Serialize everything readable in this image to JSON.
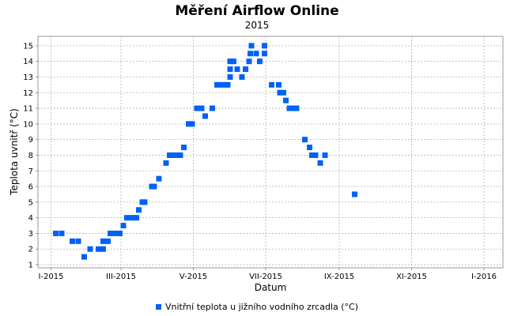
{
  "chart_data": {
    "type": "scatter",
    "title": "Měření Airflow Online",
    "subtitle": "2015",
    "xlabel": "Datum",
    "ylabel": "Teplota uvnitř (°C)",
    "x_ticks": [
      {
        "label": "I-2015",
        "date": "2015-01-01"
      },
      {
        "label": "III-2015",
        "date": "2015-03-01"
      },
      {
        "label": "V-2015",
        "date": "2015-05-01"
      },
      {
        "label": "VII-2015",
        "date": "2015-07-01"
      },
      {
        "label": "IX-2015",
        "date": "2015-09-01"
      },
      {
        "label": "XI-2015",
        "date": "2015-11-01"
      },
      {
        "label": "I-2016",
        "date": "2016-01-01"
      }
    ],
    "xlim": [
      "2014-12-21",
      "2016-01-17"
    ],
    "ylim": [
      0.8,
      15.6
    ],
    "y_ticks": [
      1,
      2,
      3,
      4,
      5,
      6,
      7,
      8,
      9,
      10,
      11,
      12,
      13,
      14,
      15
    ],
    "grid": true,
    "legend_position": "bottom",
    "color": "#0061f7",
    "series": [
      {
        "name": "Vnitřní teplota u jižního vodního zrcadla (°C)",
        "points": [
          {
            "x": "2015-01-05",
            "y": 3
          },
          {
            "x": "2015-01-10",
            "y": 3
          },
          {
            "x": "2015-01-19",
            "y": 2.5
          },
          {
            "x": "2015-01-24",
            "y": 2.5
          },
          {
            "x": "2015-01-29",
            "y": 1.5
          },
          {
            "x": "2015-02-03",
            "y": 2
          },
          {
            "x": "2015-02-10",
            "y": 2
          },
          {
            "x": "2015-02-14",
            "y": 2
          },
          {
            "x": "2015-02-14",
            "y": 2.5
          },
          {
            "x": "2015-02-18",
            "y": 2.5
          },
          {
            "x": "2015-02-20",
            "y": 3
          },
          {
            "x": "2015-02-24",
            "y": 3
          },
          {
            "x": "2015-02-28",
            "y": 3
          },
          {
            "x": "2015-03-03",
            "y": 3.5
          },
          {
            "x": "2015-03-06",
            "y": 4
          },
          {
            "x": "2015-03-10",
            "y": 4
          },
          {
            "x": "2015-03-14",
            "y": 4
          },
          {
            "x": "2015-03-16",
            "y": 4.5
          },
          {
            "x": "2015-03-19",
            "y": 5
          },
          {
            "x": "2015-03-21",
            "y": 5
          },
          {
            "x": "2015-03-27",
            "y": 6
          },
          {
            "x": "2015-03-29",
            "y": 6
          },
          {
            "x": "2015-04-02",
            "y": 6.5
          },
          {
            "x": "2015-04-08",
            "y": 7.5
          },
          {
            "x": "2015-04-11",
            "y": 8
          },
          {
            "x": "2015-04-14",
            "y": 8
          },
          {
            "x": "2015-04-17",
            "y": 8
          },
          {
            "x": "2015-04-20",
            "y": 8
          },
          {
            "x": "2015-04-23",
            "y": 8.5
          },
          {
            "x": "2015-04-27",
            "y": 10
          },
          {
            "x": "2015-04-30",
            "y": 10
          },
          {
            "x": "2015-05-04",
            "y": 11
          },
          {
            "x": "2015-05-08",
            "y": 11
          },
          {
            "x": "2015-05-11",
            "y": 10.5
          },
          {
            "x": "2015-05-17",
            "y": 11
          },
          {
            "x": "2015-05-21",
            "y": 12.5
          },
          {
            "x": "2015-05-23",
            "y": 12.5
          },
          {
            "x": "2015-05-27",
            "y": 12.5
          },
          {
            "x": "2015-05-30",
            "y": 12.5
          },
          {
            "x": "2015-06-01",
            "y": 13
          },
          {
            "x": "2015-06-01",
            "y": 13.5
          },
          {
            "x": "2015-06-01",
            "y": 14
          },
          {
            "x": "2015-06-04",
            "y": 14
          },
          {
            "x": "2015-06-07",
            "y": 13.5
          },
          {
            "x": "2015-06-11",
            "y": 13
          },
          {
            "x": "2015-06-14",
            "y": 13.5
          },
          {
            "x": "2015-06-17",
            "y": 14
          },
          {
            "x": "2015-06-18",
            "y": 14.5
          },
          {
            "x": "2015-06-19",
            "y": 15
          },
          {
            "x": "2015-06-23",
            "y": 14.5
          },
          {
            "x": "2015-06-26",
            "y": 14
          },
          {
            "x": "2015-06-30",
            "y": 14.5
          },
          {
            "x": "2015-06-30",
            "y": 15
          },
          {
            "x": "2015-07-06",
            "y": 12.5
          },
          {
            "x": "2015-07-12",
            "y": 12.5
          },
          {
            "x": "2015-07-13",
            "y": 12
          },
          {
            "x": "2015-07-16",
            "y": 12
          },
          {
            "x": "2015-07-18",
            "y": 11.5
          },
          {
            "x": "2015-07-21",
            "y": 11
          },
          {
            "x": "2015-07-25",
            "y": 11
          },
          {
            "x": "2015-07-27",
            "y": 11
          },
          {
            "x": "2015-08-03",
            "y": 9
          },
          {
            "x": "2015-08-07",
            "y": 8.5
          },
          {
            "x": "2015-08-09",
            "y": 8
          },
          {
            "x": "2015-08-12",
            "y": 8
          },
          {
            "x": "2015-08-16",
            "y": 7.5
          },
          {
            "x": "2015-08-20",
            "y": 8
          },
          {
            "x": "2015-09-14",
            "y": 5.5
          }
        ]
      }
    ]
  }
}
